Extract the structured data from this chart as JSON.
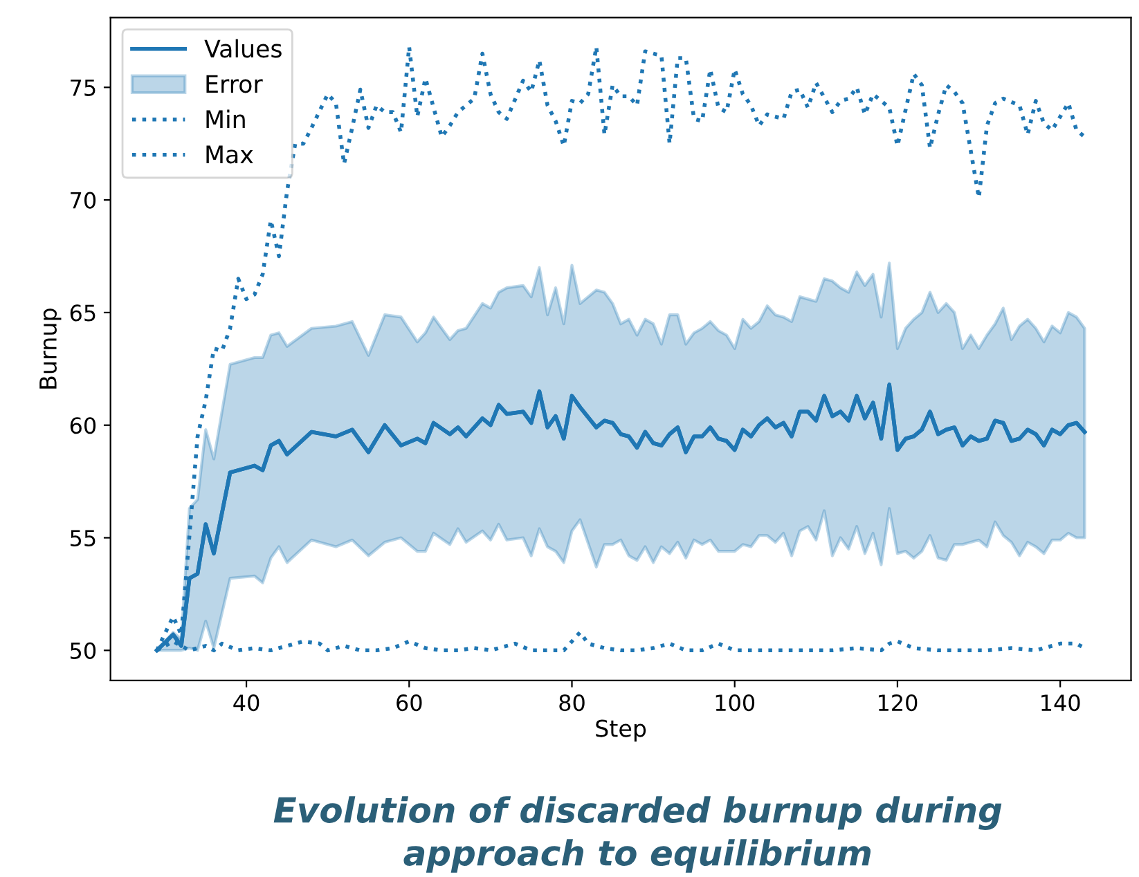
{
  "chart_data": {
    "type": "line",
    "xlabel": "Step",
    "ylabel": "Burnup",
    "annotations": [
      "Evolution of discarded burnup during\napproach to equilibrium"
    ],
    "xlim": [
      23.3,
      148.7
    ],
    "ylim": [
      48.66,
      78.1
    ],
    "xticks": [
      40,
      60,
      80,
      100,
      120,
      140
    ],
    "yticks": [
      50,
      55,
      60,
      65,
      70,
      75
    ],
    "legend": "top left",
    "grid": false,
    "series": [
      {
        "name": "Values",
        "color": "#1f77b4",
        "line_style": "solid",
        "x": [
          29,
          31,
          32,
          33,
          34,
          35,
          36,
          38,
          41,
          42,
          43,
          44,
          45,
          48,
          51,
          53,
          55,
          57,
          59,
          61,
          62,
          63,
          65,
          66,
          67,
          69,
          70,
          71,
          72,
          74,
          75,
          76,
          77,
          78,
          79,
          80,
          81,
          83,
          84,
          85,
          86,
          87,
          88,
          89,
          90,
          91,
          92,
          93,
          94,
          95,
          96,
          97,
          98,
          99,
          100,
          101,
          102,
          103,
          104,
          105,
          106,
          107,
          108,
          109,
          110,
          111,
          112,
          113,
          114,
          115,
          116,
          117,
          118,
          119,
          120,
          121,
          122,
          123,
          124,
          125,
          126,
          127,
          128,
          129,
          130,
          131,
          132,
          133,
          134,
          135,
          136,
          137,
          138,
          139,
          140,
          141,
          142,
          143
        ],
        "values": [
          50.0,
          50.7,
          50.2,
          53.2,
          53.4,
          55.6,
          54.3,
          57.9,
          58.2,
          58.0,
          59.1,
          59.3,
          58.7,
          59.7,
          59.5,
          59.8,
          58.8,
          60.0,
          59.1,
          59.4,
          59.2,
          60.1,
          59.6,
          59.9,
          59.5,
          60.3,
          60.0,
          60.9,
          60.5,
          60.6,
          60.1,
          61.5,
          59.9,
          60.4,
          59.4,
          61.3,
          60.8,
          59.9,
          60.2,
          60.1,
          59.6,
          59.5,
          59.0,
          59.7,
          59.2,
          59.1,
          59.6,
          59.9,
          58.8,
          59.5,
          59.5,
          59.9,
          59.4,
          59.3,
          58.9,
          59.8,
          59.5,
          60.0,
          60.3,
          59.9,
          60.1,
          59.5,
          60.6,
          60.6,
          60.2,
          61.3,
          60.4,
          60.6,
          60.2,
          61.3,
          60.3,
          61.0,
          59.4,
          61.8,
          58.9,
          59.4,
          59.5,
          59.8,
          60.6,
          59.6,
          59.8,
          59.9,
          59.1,
          59.5,
          59.3,
          59.4,
          60.2,
          60.1,
          59.3,
          59.4,
          59.8,
          59.6,
          59.1,
          59.8,
          59.6,
          60.0,
          60.1,
          59.7
        ]
      },
      {
        "name": "Error",
        "type": "line",
        "color": "#1f77b4",
        "x": [
          29,
          31,
          32,
          33,
          34,
          35,
          36,
          38,
          41,
          42,
          43,
          44,
          45,
          48,
          51,
          53,
          55,
          57,
          59,
          61,
          62,
          63,
          65,
          66,
          67,
          69,
          70,
          71,
          72,
          74,
          75,
          76,
          77,
          78,
          79,
          80,
          81,
          83,
          84,
          85,
          86,
          87,
          88,
          89,
          90,
          91,
          92,
          93,
          94,
          95,
          96,
          97,
          98,
          99,
          100,
          101,
          102,
          103,
          104,
          105,
          106,
          107,
          108,
          109,
          110,
          111,
          112,
          113,
          114,
          115,
          116,
          117,
          118,
          119,
          120,
          121,
          122,
          123,
          124,
          125,
          126,
          127,
          128,
          129,
          130,
          131,
          132,
          133,
          134,
          135,
          136,
          137,
          138,
          139,
          140,
          141,
          142,
          143
        ],
        "values": [
          50.0,
          50.7,
          50.2,
          53.2,
          53.4,
          55.6,
          54.3,
          57.9,
          58.2,
          58.0,
          59.1,
          59.3,
          58.7,
          59.7,
          59.5,
          59.8,
          58.8,
          60.0,
          59.1,
          59.4,
          59.2,
          60.1,
          59.6,
          59.9,
          59.5,
          60.3,
          60.0,
          60.9,
          60.5,
          60.6,
          60.1,
          61.5,
          59.9,
          60.4,
          59.4,
          61.3,
          60.8,
          59.9,
          60.2,
          60.1,
          59.6,
          59.5,
          59.0,
          59.7,
          59.2,
          59.1,
          59.6,
          59.9,
          58.8,
          59.5,
          59.5,
          59.9,
          59.4,
          59.3,
          58.9,
          59.8,
          59.5,
          60.0,
          60.3,
          59.9,
          60.1,
          59.5,
          60.6,
          60.6,
          60.2,
          61.3,
          60.4,
          60.6,
          60.2,
          61.3,
          60.3,
          61.0,
          59.4,
          61.8,
          58.9,
          59.4,
          59.5,
          59.8,
          60.6,
          59.6,
          59.8,
          59.9,
          59.1,
          59.5,
          59.3,
          59.4,
          60.2,
          60.1,
          59.3,
          59.4,
          59.8,
          59.6,
          59.1,
          59.8,
          59.6,
          60.0,
          60.1,
          59.7
        ],
        "upper": [
          50.0,
          50.8,
          50.5,
          56.3,
          56.7,
          59.8,
          58.5,
          62.7,
          63.0,
          63.0,
          64.0,
          64.1,
          63.5,
          64.3,
          64.4,
          64.6,
          63.1,
          64.9,
          64.8,
          63.7,
          64.1,
          64.8,
          63.8,
          64.2,
          64.3,
          65.4,
          65.2,
          65.9,
          66.1,
          66.2,
          65.7,
          67.0,
          64.9,
          66.1,
          64.5,
          67.1,
          65.4,
          66.0,
          65.9,
          65.4,
          64.5,
          64.7,
          64.0,
          64.7,
          64.5,
          63.6,
          64.9,
          64.9,
          63.6,
          64.1,
          64.3,
          64.6,
          64.2,
          64.0,
          63.4,
          64.7,
          64.3,
          64.6,
          65.3,
          64.9,
          64.8,
          64.6,
          65.7,
          65.6,
          65.5,
          66.5,
          66.4,
          66.1,
          65.9,
          66.8,
          66.2,
          66.7,
          64.8,
          67.2,
          63.4,
          64.3,
          64.7,
          65.0,
          65.9,
          65.0,
          65.4,
          65.0,
          63.4,
          64.0,
          63.4,
          64.0,
          64.5,
          65.2,
          63.8,
          64.4,
          64.7,
          64.3,
          63.7,
          64.4,
          64.1,
          65.0,
          64.8,
          64.3
        ],
        "lower": [
          50.0,
          50.0,
          50.0,
          50.1,
          50.0,
          51.3,
          50.1,
          53.2,
          53.3,
          53.0,
          54.1,
          54.6,
          53.9,
          54.9,
          54.6,
          54.9,
          54.2,
          54.8,
          55.0,
          54.4,
          54.4,
          55.2,
          54.7,
          55.4,
          54.8,
          55.3,
          54.9,
          55.6,
          54.9,
          55.0,
          54.2,
          55.4,
          54.6,
          54.4,
          53.9,
          55.3,
          55.8,
          53.7,
          54.7,
          54.7,
          54.9,
          54.2,
          54.0,
          54.6,
          53.9,
          54.6,
          54.3,
          54.8,
          54.1,
          54.9,
          54.7,
          54.9,
          54.4,
          54.4,
          54.4,
          54.7,
          54.6,
          55.1,
          55.1,
          54.8,
          55.2,
          54.2,
          55.3,
          55.5,
          54.9,
          56.2,
          54.2,
          55.0,
          54.5,
          55.5,
          54.3,
          55.2,
          53.8,
          56.3,
          54.3,
          54.4,
          54.1,
          54.4,
          55.1,
          54.1,
          54.0,
          54.7,
          54.7,
          54.8,
          54.9,
          54.6,
          55.7,
          55.1,
          54.8,
          54.2,
          54.8,
          54.6,
          54.3,
          54.9,
          54.9,
          55.2,
          55.0,
          55.0
        ]
      },
      {
        "name": "Min",
        "color": "#1f77b4",
        "line_style": "dotted",
        "x": [
          29,
          31,
          32,
          33,
          35,
          36,
          37,
          39,
          41,
          43,
          45,
          47,
          49,
          50,
          52,
          54,
          56,
          58,
          60,
          62,
          64,
          66,
          68,
          70,
          73,
          75,
          77,
          79,
          81,
          82,
          84,
          86,
          88,
          90,
          92,
          94,
          96,
          98,
          100,
          103,
          106,
          109,
          112,
          115,
          118,
          119,
          120,
          122,
          125,
          128,
          131,
          134,
          137,
          140,
          142,
          143
        ],
        "values": [
          50.0,
          50.4,
          50.2,
          50.0,
          50.2,
          50.0,
          50.3,
          50.0,
          50.1,
          50.0,
          50.2,
          50.4,
          50.3,
          50.0,
          50.2,
          50.0,
          50.0,
          50.1,
          50.4,
          50.1,
          50.0,
          50.0,
          50.1,
          50.0,
          50.3,
          50.0,
          50.0,
          50.0,
          50.8,
          50.3,
          50.1,
          50.0,
          50.0,
          50.1,
          50.3,
          50.0,
          50.0,
          50.3,
          50.0,
          50.0,
          50.0,
          50.0,
          50.0,
          50.1,
          50.0,
          50.3,
          50.4,
          50.1,
          50.0,
          50.0,
          50.0,
          50.1,
          50.0,
          50.3,
          50.3,
          50.1
        ]
      },
      {
        "name": "Max",
        "color": "#1f77b4",
        "line_style": "dotted",
        "x": [
          29,
          31,
          32,
          33,
          34,
          35,
          36,
          37,
          38,
          39,
          40,
          41,
          42,
          43,
          44,
          45,
          46,
          47,
          48,
          50,
          51,
          52,
          53,
          54,
          55,
          56,
          57,
          58,
          59,
          60,
          61,
          62,
          64,
          65,
          66,
          68,
          69,
          70,
          71,
          72,
          74,
          75,
          76,
          77,
          78,
          79,
          80,
          81,
          82,
          83,
          84,
          85,
          86,
          87,
          88,
          89,
          91,
          92,
          93,
          94,
          95,
          96,
          97,
          98,
          99,
          100,
          101,
          102,
          103,
          104,
          106,
          107,
          108,
          109,
          110,
          112,
          113,
          114,
          115,
          116,
          117,
          119,
          120,
          122,
          123,
          124,
          125,
          126,
          127,
          128,
          129,
          130,
          131,
          132,
          133,
          135,
          136,
          137,
          138,
          139,
          141,
          142,
          143
        ],
        "values": [
          50.0,
          51.5,
          50.7,
          55.1,
          59.5,
          61.1,
          63.4,
          63.3,
          64.3,
          66.5,
          65.6,
          65.8,
          66.7,
          69.1,
          67.5,
          70.4,
          72.5,
          72.5,
          73.2,
          74.7,
          74.3,
          71.6,
          73.2,
          74.9,
          73.2,
          74.2,
          73.9,
          73.9,
          73.0,
          76.8,
          73.7,
          75.4,
          72.8,
          73.3,
          73.9,
          74.5,
          76.5,
          74.7,
          73.9,
          73.6,
          75.3,
          74.8,
          76.2,
          74.2,
          73.5,
          72.4,
          74.4,
          74.3,
          74.7,
          76.8,
          72.9,
          75.1,
          74.6,
          74.6,
          74.2,
          76.6,
          76.4,
          72.5,
          76.3,
          76.3,
          73.6,
          73.5,
          75.8,
          74.1,
          73.9,
          75.8,
          74.7,
          74.2,
          73.3,
          73.8,
          73.6,
          74.8,
          74.9,
          74.1,
          75.2,
          73.9,
          74.4,
          74.5,
          75.0,
          73.8,
          74.7,
          74.1,
          72.4,
          75.6,
          75.1,
          72.3,
          73.8,
          75.1,
          74.8,
          74.3,
          72.2,
          70.1,
          73.3,
          74.3,
          74.5,
          74.2,
          72.9,
          74.4,
          73.4,
          73.1,
          74.3,
          73.1,
          72.8
        ]
      }
    ]
  }
}
